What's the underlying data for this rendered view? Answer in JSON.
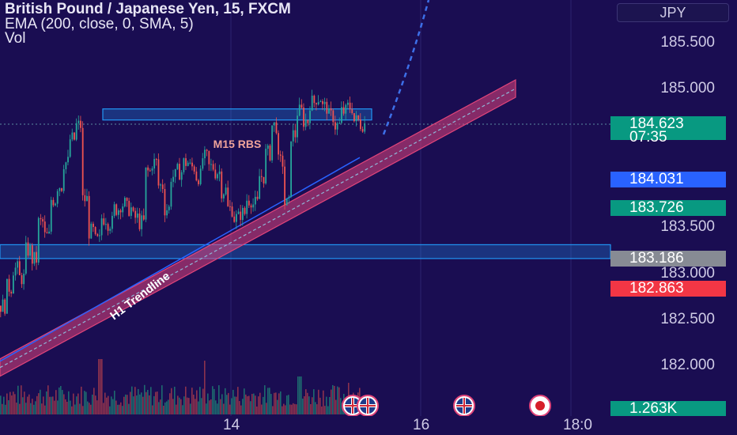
{
  "header": {
    "symbol_line": "British Pound / Japanese Yen, 15, FXCM",
    "ema_line": "EMA (200, close, 0, SMA, 5)",
    "vol_line": "Vol"
  },
  "currency_button": "JPY",
  "price_axis": {
    "ticks": [
      "185.500",
      "185.000",
      "183.500",
      "183.000",
      "182.500",
      "182.000"
    ]
  },
  "price_badges": {
    "last": {
      "value": "184.623",
      "countdown": "07:35",
      "color": "#089981"
    },
    "ema": {
      "value": "184.031",
      "color": "#2962ff"
    },
    "level_green": {
      "value": "183.726",
      "color": "#089981"
    },
    "zone": {
      "value": "183.186",
      "color": "#878b94"
    },
    "level_red": {
      "value": "182.863",
      "color": "#f23645"
    },
    "volume": {
      "value": "1.263K",
      "color": "#089981"
    }
  },
  "time_axis": {
    "labels": [
      "14",
      "16",
      "18:0"
    ]
  },
  "annotations": {
    "rbs_label": "M15 RBS",
    "trendline_label": "H1 Trendline"
  },
  "colors": {
    "background": "#1a0d52",
    "up_candle": "#26a69a",
    "down_candle": "#ef5350",
    "ema": "#2962ff",
    "trend_channel": "#e0447a",
    "zone": "#2196f3"
  },
  "chart_data": {
    "type": "candlestick",
    "title": "British Pound / Japanese Yen, 15, FXCM",
    "ylim": [
      181.75,
      186.0
    ],
    "x_labels": [
      "14",
      "16",
      "18:0"
    ],
    "last_price": 184.623,
    "ema_value": 184.031,
    "volume_last": "1.263K",
    "horizontal_levels": [
      184.623,
      184.031,
      183.726,
      183.186,
      182.863
    ],
    "zones": [
      {
        "label": "M15 RBS",
        "price_low": 184.66,
        "price_high": 184.78
      },
      {
        "label": "",
        "price_low": 183.16,
        "price_high": 183.31
      }
    ],
    "trendline": {
      "label": "H1 Trendline",
      "start": [
        0,
        181.98
      ],
      "end": [
        652,
        185.0
      ]
    },
    "price_path": [
      182.65,
      182.85,
      183.05,
      182.95,
      183.25,
      183.15,
      183.55,
      183.4,
      183.8,
      183.95,
      184.2,
      184.45,
      184.6,
      183.8,
      183.45,
      183.35,
      183.6,
      183.55,
      183.7,
      183.75,
      183.7,
      183.6,
      183.55,
      184.1,
      184.2,
      183.95,
      183.7,
      184.05,
      184.1,
      184.2,
      184.15,
      184.05,
      184.25,
      184.15,
      184.1,
      183.9,
      183.7,
      183.6,
      183.65,
      183.8,
      183.75,
      184.05,
      184.3,
      184.6,
      184.2,
      183.75,
      184.5,
      184.75,
      184.65,
      184.85,
      184.9,
      184.8,
      184.7,
      184.6,
      184.75,
      184.8,
      184.65,
      184.62
    ]
  }
}
